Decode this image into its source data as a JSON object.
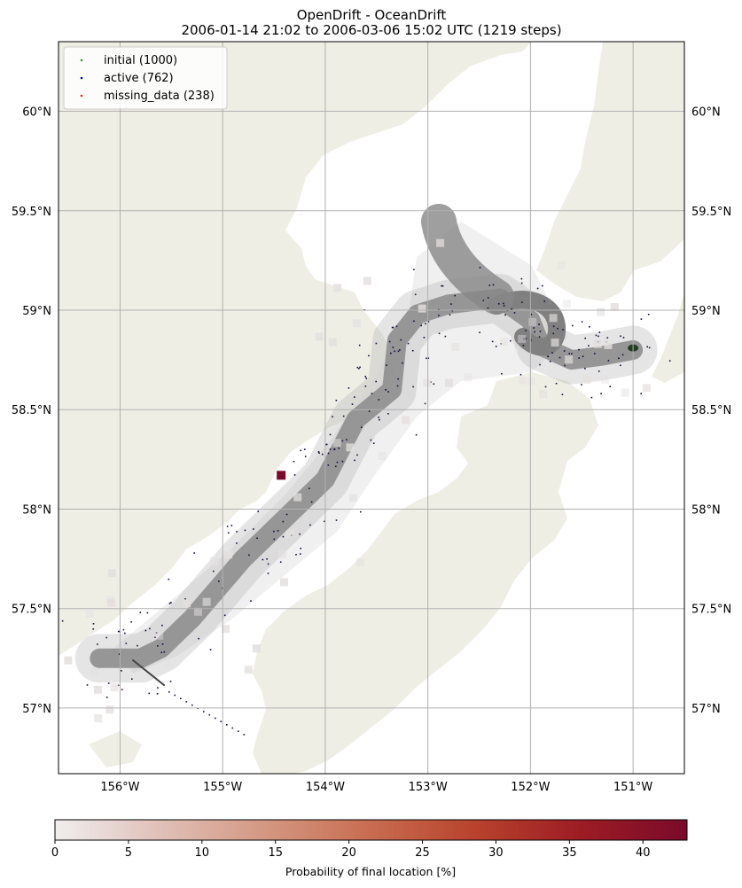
{
  "chart_data": {
    "type": "map",
    "title_line1": "OpenDrift - OceanDrift",
    "title_line2": "2006-01-14 21:02 to 2006-03-06 15:02 UTC (1219 steps)",
    "lon_range": [
      -156.6,
      -150.5
    ],
    "lat_range": [
      56.67,
      60.35
    ],
    "lon_ticks": [
      "156°W",
      "155°W",
      "154°W",
      "153°W",
      "152°W",
      "151°W"
    ],
    "lon_tick_values": [
      -156,
      -155,
      -154,
      -153,
      -152,
      -151
    ],
    "lat_ticks": [
      "60°N",
      "59.5°N",
      "59°N",
      "58.5°N",
      "58°N",
      "57.5°N",
      "57°N"
    ],
    "lat_tick_values": [
      60,
      59.5,
      59,
      58.5,
      58,
      57.5,
      57
    ],
    "grid": true,
    "legend": {
      "placement": "top-left",
      "entries": [
        {
          "label": "initial (1000)",
          "color": "#2ca02c"
        },
        {
          "label": "active (762)",
          "color": "#0000cc"
        },
        {
          "label": "missing_data (238)",
          "color": "#d62728"
        }
      ]
    },
    "release_point": {
      "lon": -151.0,
      "lat": 58.81
    },
    "main_trajectory_path": [
      [
        -151.0,
        58.8
      ],
      [
        -151.3,
        58.77
      ],
      [
        -151.6,
        58.75
      ],
      [
        -151.9,
        58.82
      ],
      [
        -152.0,
        58.95
      ],
      [
        -152.3,
        59.06
      ],
      [
        -152.8,
        59.03
      ],
      [
        -153.1,
        58.98
      ],
      [
        -153.3,
        58.85
      ],
      [
        -153.35,
        58.6
      ],
      [
        -153.7,
        58.45
      ],
      [
        -153.85,
        58.3
      ],
      [
        -154.0,
        58.15
      ],
      [
        -154.3,
        58.0
      ],
      [
        -154.8,
        57.75
      ],
      [
        -155.3,
        57.45
      ],
      [
        -155.6,
        57.3
      ],
      [
        -155.8,
        57.25
      ],
      [
        -156.2,
        57.25
      ]
    ],
    "colorbar": {
      "label": "Probability of final location [%]",
      "ticks": [
        0,
        5,
        10,
        15,
        20,
        25,
        30,
        35,
        40
      ],
      "range": [
        0,
        43
      ],
      "colors": [
        "#f0eeee",
        "#e0c0b8",
        "#d49782",
        "#c86c50",
        "#b8422c",
        "#9c1c24",
        "#7a0a2a"
      ]
    },
    "max_probability_cell": {
      "lon": -154.43,
      "lat": 58.17
    },
    "colors": {
      "land": "#efeee5",
      "ocean": "#ffffff",
      "trajectory": "#808080",
      "grid": "#b0b0b0"
    }
  }
}
